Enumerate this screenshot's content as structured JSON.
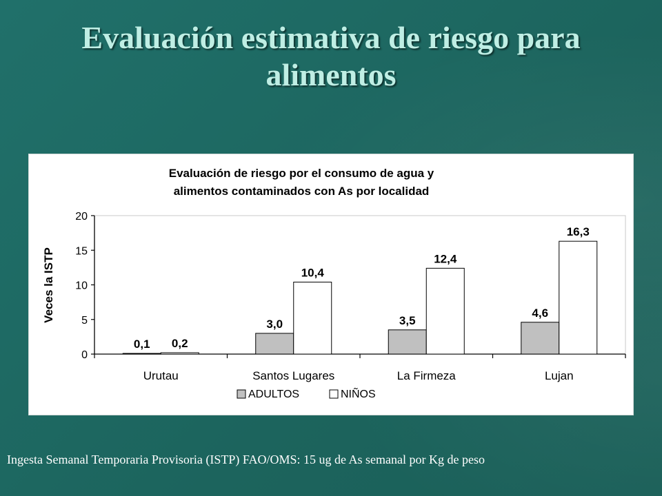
{
  "slide": {
    "title_line1": "Evaluación estimativa de riesgo para",
    "title_line2": "alimentos",
    "footnote": "Ingesta Semanal Temporaria Provisoria (ISTP) FAO/OMS: 15 ug de As semanal por Kg de peso"
  },
  "chart_data": {
    "type": "bar",
    "title_line1": "Evaluación de riesgo  por el consumo de agua y",
    "title_line2": "alimentos contaminados con As por localidad",
    "ylabel": "Veces la ISTP",
    "xlabel": "",
    "categories": [
      "Urutau",
      "Santos Lugares",
      "La Firmeza",
      "Lujan"
    ],
    "series": [
      {
        "name": "ADULTOS",
        "values": [
          0.1,
          3.0,
          3.5,
          4.6
        ],
        "labels": [
          "0,1",
          "3,0",
          "3,5",
          "4,6"
        ],
        "color": "#c0c0c0"
      },
      {
        "name": "NIÑOS",
        "values": [
          0.2,
          10.4,
          12.4,
          16.3
        ],
        "labels": [
          "0,2",
          "10,4",
          "12,4",
          "16,3"
        ],
        "color": "#ffffff"
      }
    ],
    "ylim": [
      0,
      20
    ],
    "yticks": [
      0,
      5,
      10,
      15,
      20
    ],
    "grid": false,
    "legend_position": "bottom"
  }
}
